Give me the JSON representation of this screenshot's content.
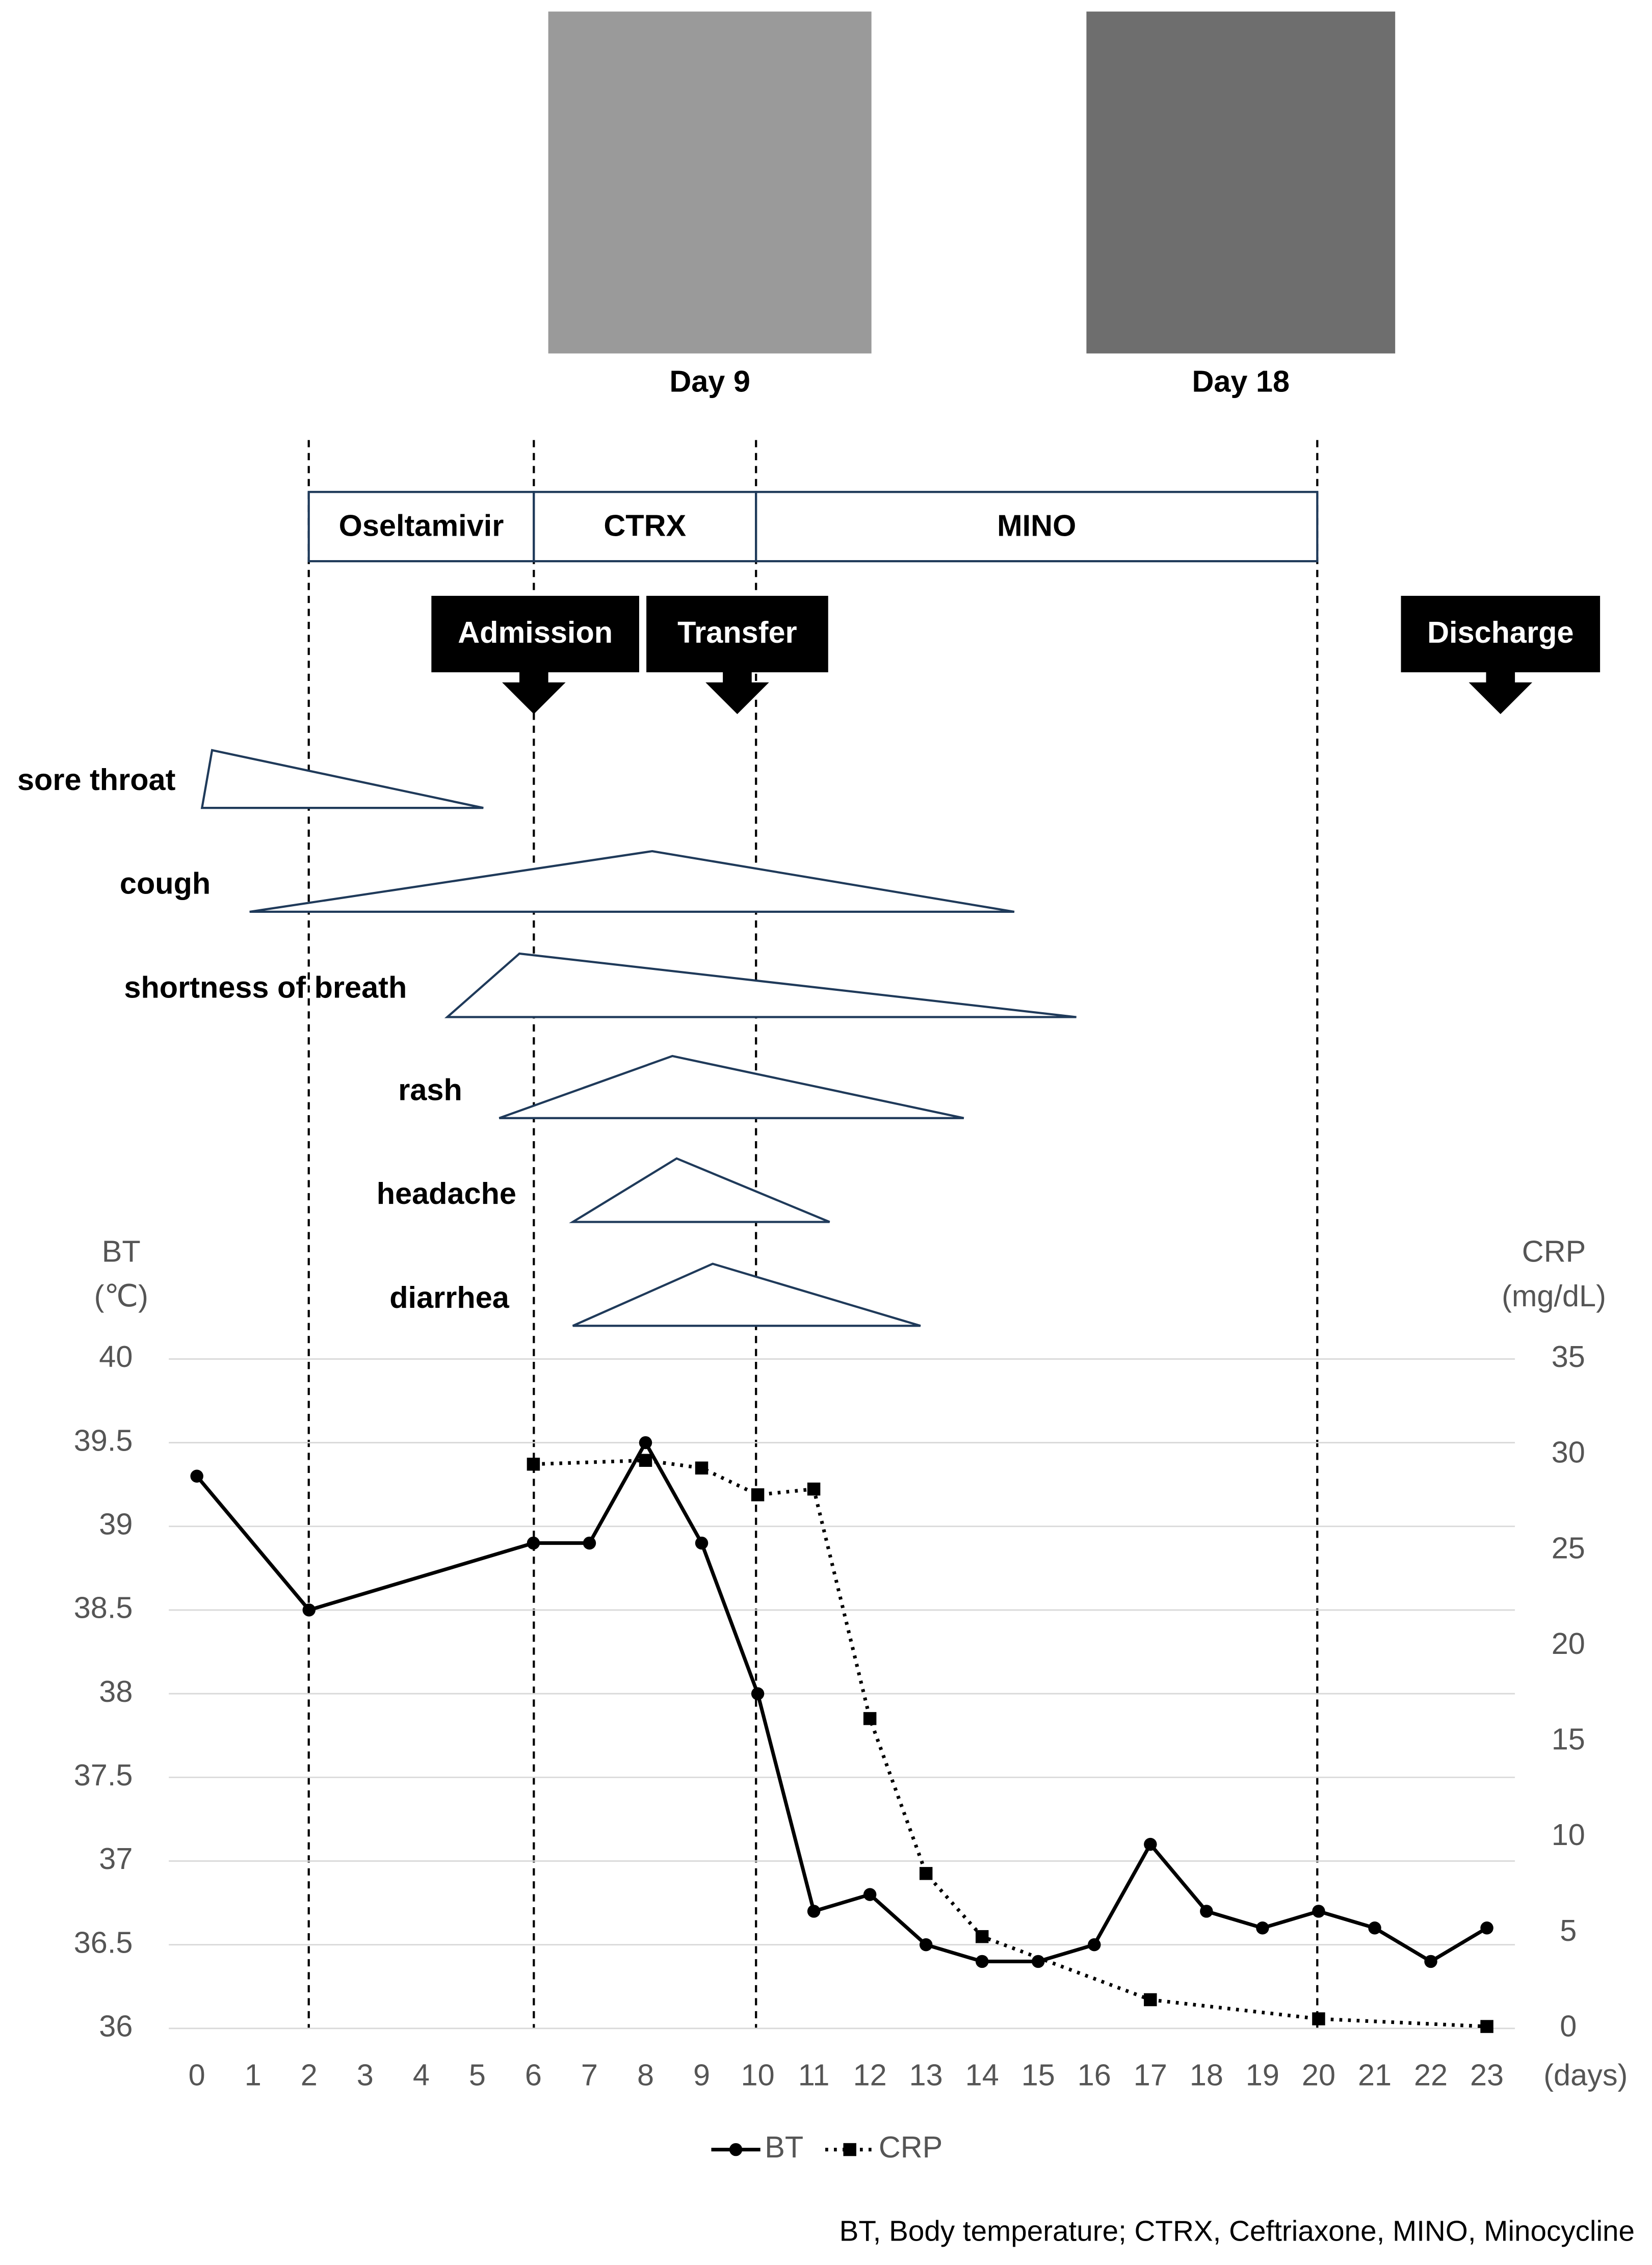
{
  "images": [
    {
      "caption": "Day 9"
    },
    {
      "caption": "Day 18"
    }
  ],
  "treatments": [
    "Oseltamivir",
    "CTRX",
    "MINO"
  ],
  "events": [
    "Admission",
    "Transfer",
    "Discharge"
  ],
  "symptoms": [
    "sore throat",
    "cough",
    "shortness of breath",
    "rash",
    "headache",
    "diarrhea"
  ],
  "chart_data": {
    "type": "line",
    "ylabel": [
      "BT",
      "(℃)"
    ],
    "y2label": [
      "CRP",
      "(mg/dL)"
    ],
    "xlabel": "(days)",
    "xlim": [
      -0.5,
      23.5
    ],
    "xticks": [
      0,
      1,
      2,
      3,
      4,
      5,
      6,
      7,
      8,
      9,
      10,
      11,
      12,
      13,
      14,
      15,
      16,
      17,
      18,
      19,
      20,
      21,
      22,
      23
    ],
    "ylim": [
      36,
      40
    ],
    "yticks": [
      36,
      36.5,
      37,
      37.5,
      38,
      38.5,
      39,
      39.5,
      40
    ],
    "y2lim": [
      0,
      35
    ],
    "y2ticks": [
      0,
      5,
      10,
      15,
      20,
      25,
      30,
      35
    ],
    "grid": true,
    "series": [
      {
        "name": "BT",
        "color": "#000000",
        "marker": "circle",
        "dash": "solid",
        "x": [
          0,
          2,
          6,
          7,
          8,
          9,
          10,
          11,
          12,
          13,
          14,
          15,
          16,
          17,
          18,
          19,
          20,
          21,
          22,
          23
        ],
        "values": [
          39.3,
          38.5,
          38.9,
          38.9,
          39.5,
          38.9,
          38.0,
          36.7,
          36.8,
          36.5,
          36.4,
          36.4,
          36.5,
          37.1,
          36.7,
          36.6,
          36.7,
          36.6,
          36.4,
          36.6
        ]
      },
      {
        "name": "CRP",
        "color": "#000000",
        "marker": "square",
        "dash": "dotted",
        "axis": "y2",
        "x": [
          6,
          8,
          9,
          10,
          11,
          12,
          13,
          14,
          17,
          20,
          23
        ],
        "values": [
          29.5,
          29.7,
          29.3,
          27.9,
          28.2,
          16.2,
          8.1,
          4.8,
          1.5,
          0.5,
          0.1
        ]
      }
    ]
  },
  "footnote": "BT, Body temperature; CTRX, Ceftriaxone, MINO,  Minocycline"
}
